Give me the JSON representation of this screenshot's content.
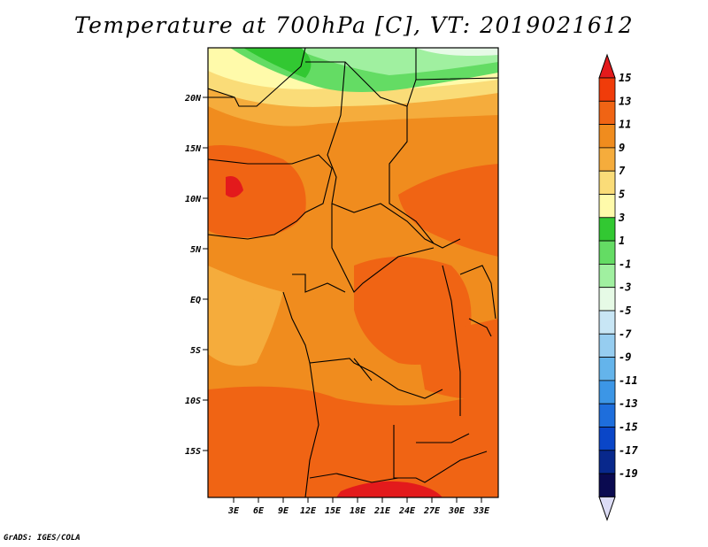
{
  "title": "Temperature at 700hPa [C], VT: 2019021612",
  "footer": "GrADS: IGES/COLA",
  "lat_labels": [
    "20N",
    "15N",
    "10N",
    "5N",
    "EQ",
    "5S",
    "10S",
    "15S"
  ],
  "lon_labels": [
    "3E",
    "6E",
    "9E",
    "12E",
    "15E",
    "18E",
    "21E",
    "24E",
    "27E",
    "30E",
    "33E"
  ],
  "colorbar": {
    "labels": [
      "15",
      "13",
      "11",
      "9",
      "7",
      "5",
      "3",
      "1",
      "-1",
      "-3",
      "-5",
      "-7",
      "-9",
      "-11",
      "-13",
      "-15",
      "-17",
      "-19"
    ],
    "colors": [
      "#e31a1c",
      "#f03c0a",
      "#f06414",
      "#f08c1e",
      "#f5ac3c",
      "#fadc78",
      "#fffaaa",
      "#32c832",
      "#64dc64",
      "#a0f0a0",
      "#e6fae6",
      "#c8e6f5",
      "#96cdf0",
      "#64b4eb",
      "#3c96e6",
      "#1e6edc",
      "#0a46c8",
      "#08288c",
      "#0a0a50",
      "#dcdcf5"
    ]
  },
  "map_colors": {
    "deep_orange": "#f06414",
    "orange": "#f08c1e",
    "light_orange": "#f5ac3c",
    "yellow": "#fadc78",
    "pale_yellow": "#fffaaa",
    "green": "#32c832",
    "light_green": "#64dc64",
    "pale_green": "#a0f0a0",
    "red": "#e31a1c"
  }
}
